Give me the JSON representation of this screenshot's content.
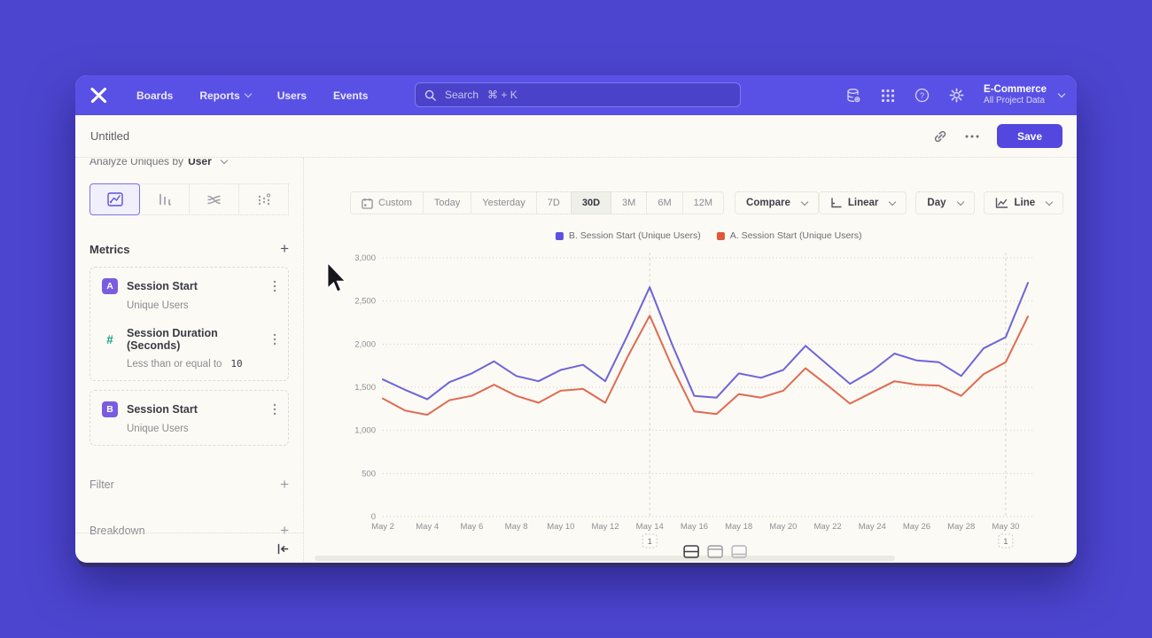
{
  "nav": {
    "items": [
      {
        "label": "Boards",
        "chevron": false
      },
      {
        "label": "Reports",
        "chevron": true
      },
      {
        "label": "Users",
        "chevron": false
      },
      {
        "label": "Events",
        "chevron": false
      }
    ],
    "search": {
      "placeholder": "Search   ⌘ + K"
    },
    "project": {
      "name": "E-Commerce",
      "subtitle": "All Project Data"
    }
  },
  "header": {
    "title": "Untitled",
    "save_label": "Save"
  },
  "sidebar": {
    "analyze": {
      "label": "Analyze Uniques by",
      "value": "User"
    },
    "metrics": {
      "title": "Metrics",
      "items": [
        {
          "badge": "A",
          "name": "Session Start",
          "subtitle": "Unique Users"
        },
        {
          "badge": "#",
          "name": "Session Duration (Seconds)",
          "condition_label": "Less than or equal to",
          "condition_value": "10"
        },
        {
          "badge": "B",
          "name": "Session Start",
          "subtitle": "Unique Users"
        }
      ]
    },
    "sections": [
      {
        "label": "Filter"
      },
      {
        "label": "Breakdown"
      }
    ]
  },
  "toolbar": {
    "ranges": [
      "Custom",
      "Today",
      "Yesterday",
      "7D",
      "30D",
      "3M",
      "6M",
      "12M"
    ],
    "selected_range": "30D",
    "compare_label": "Compare",
    "scale_label": "Linear",
    "interval_label": "Day",
    "chart_type_label": "Line"
  },
  "colors": {
    "accent": "#5347e0",
    "nav_background": "#5951e6",
    "page_background": "#4c45cf",
    "series_b": "#6f64d8",
    "series_a": "#e06a52",
    "badge_purple": "#7a5ce0",
    "hash_teal": "#17a187"
  },
  "chart_data": {
    "type": "line",
    "title": "",
    "xlabel": "",
    "ylabel": "",
    "x": [
      "May 2",
      "May 3",
      "May 4",
      "May 5",
      "May 6",
      "May 7",
      "May 8",
      "May 9",
      "May 10",
      "May 11",
      "May 12",
      "May 13",
      "May 14",
      "May 15",
      "May 16",
      "May 17",
      "May 18",
      "May 19",
      "May 20",
      "May 21",
      "May 22",
      "May 23",
      "May 24",
      "May 25",
      "May 26",
      "May 27",
      "May 28",
      "May 29",
      "May 30",
      "May 31"
    ],
    "series": [
      {
        "name": "B. Session Start (Unique Users)",
        "color": "#6f64d8",
        "swatch": "#5b50e0",
        "values": [
          1590,
          1470,
          1360,
          1560,
          1660,
          1800,
          1630,
          1570,
          1700,
          1760,
          1570,
          2100,
          2660,
          2000,
          1400,
          1380,
          1660,
          1610,
          1700,
          1980,
          1760,
          1540,
          1690,
          1890,
          1810,
          1790,
          1630,
          1950,
          2080,
          2710
        ]
      },
      {
        "name": "A. Session Start (Unique Users)",
        "color": "#e06a52",
        "swatch": "#e0573c",
        "values": [
          1370,
          1230,
          1180,
          1350,
          1400,
          1530,
          1400,
          1320,
          1460,
          1480,
          1320,
          1850,
          2330,
          1740,
          1220,
          1190,
          1420,
          1380,
          1460,
          1720,
          1520,
          1310,
          1440,
          1570,
          1530,
          1520,
          1400,
          1650,
          1790,
          2320
        ]
      }
    ],
    "ylim": [
      0,
      3000
    ],
    "yticks": [
      0,
      500,
      1000,
      1500,
      2000,
      2500,
      3000
    ],
    "xtick_every": 2,
    "grid": "horizontal-dotted",
    "legend_position": "top-center",
    "annotations": [
      {
        "x_label": "May 14",
        "label": "1"
      },
      {
        "x_label": "May 30",
        "label": "1"
      }
    ]
  }
}
